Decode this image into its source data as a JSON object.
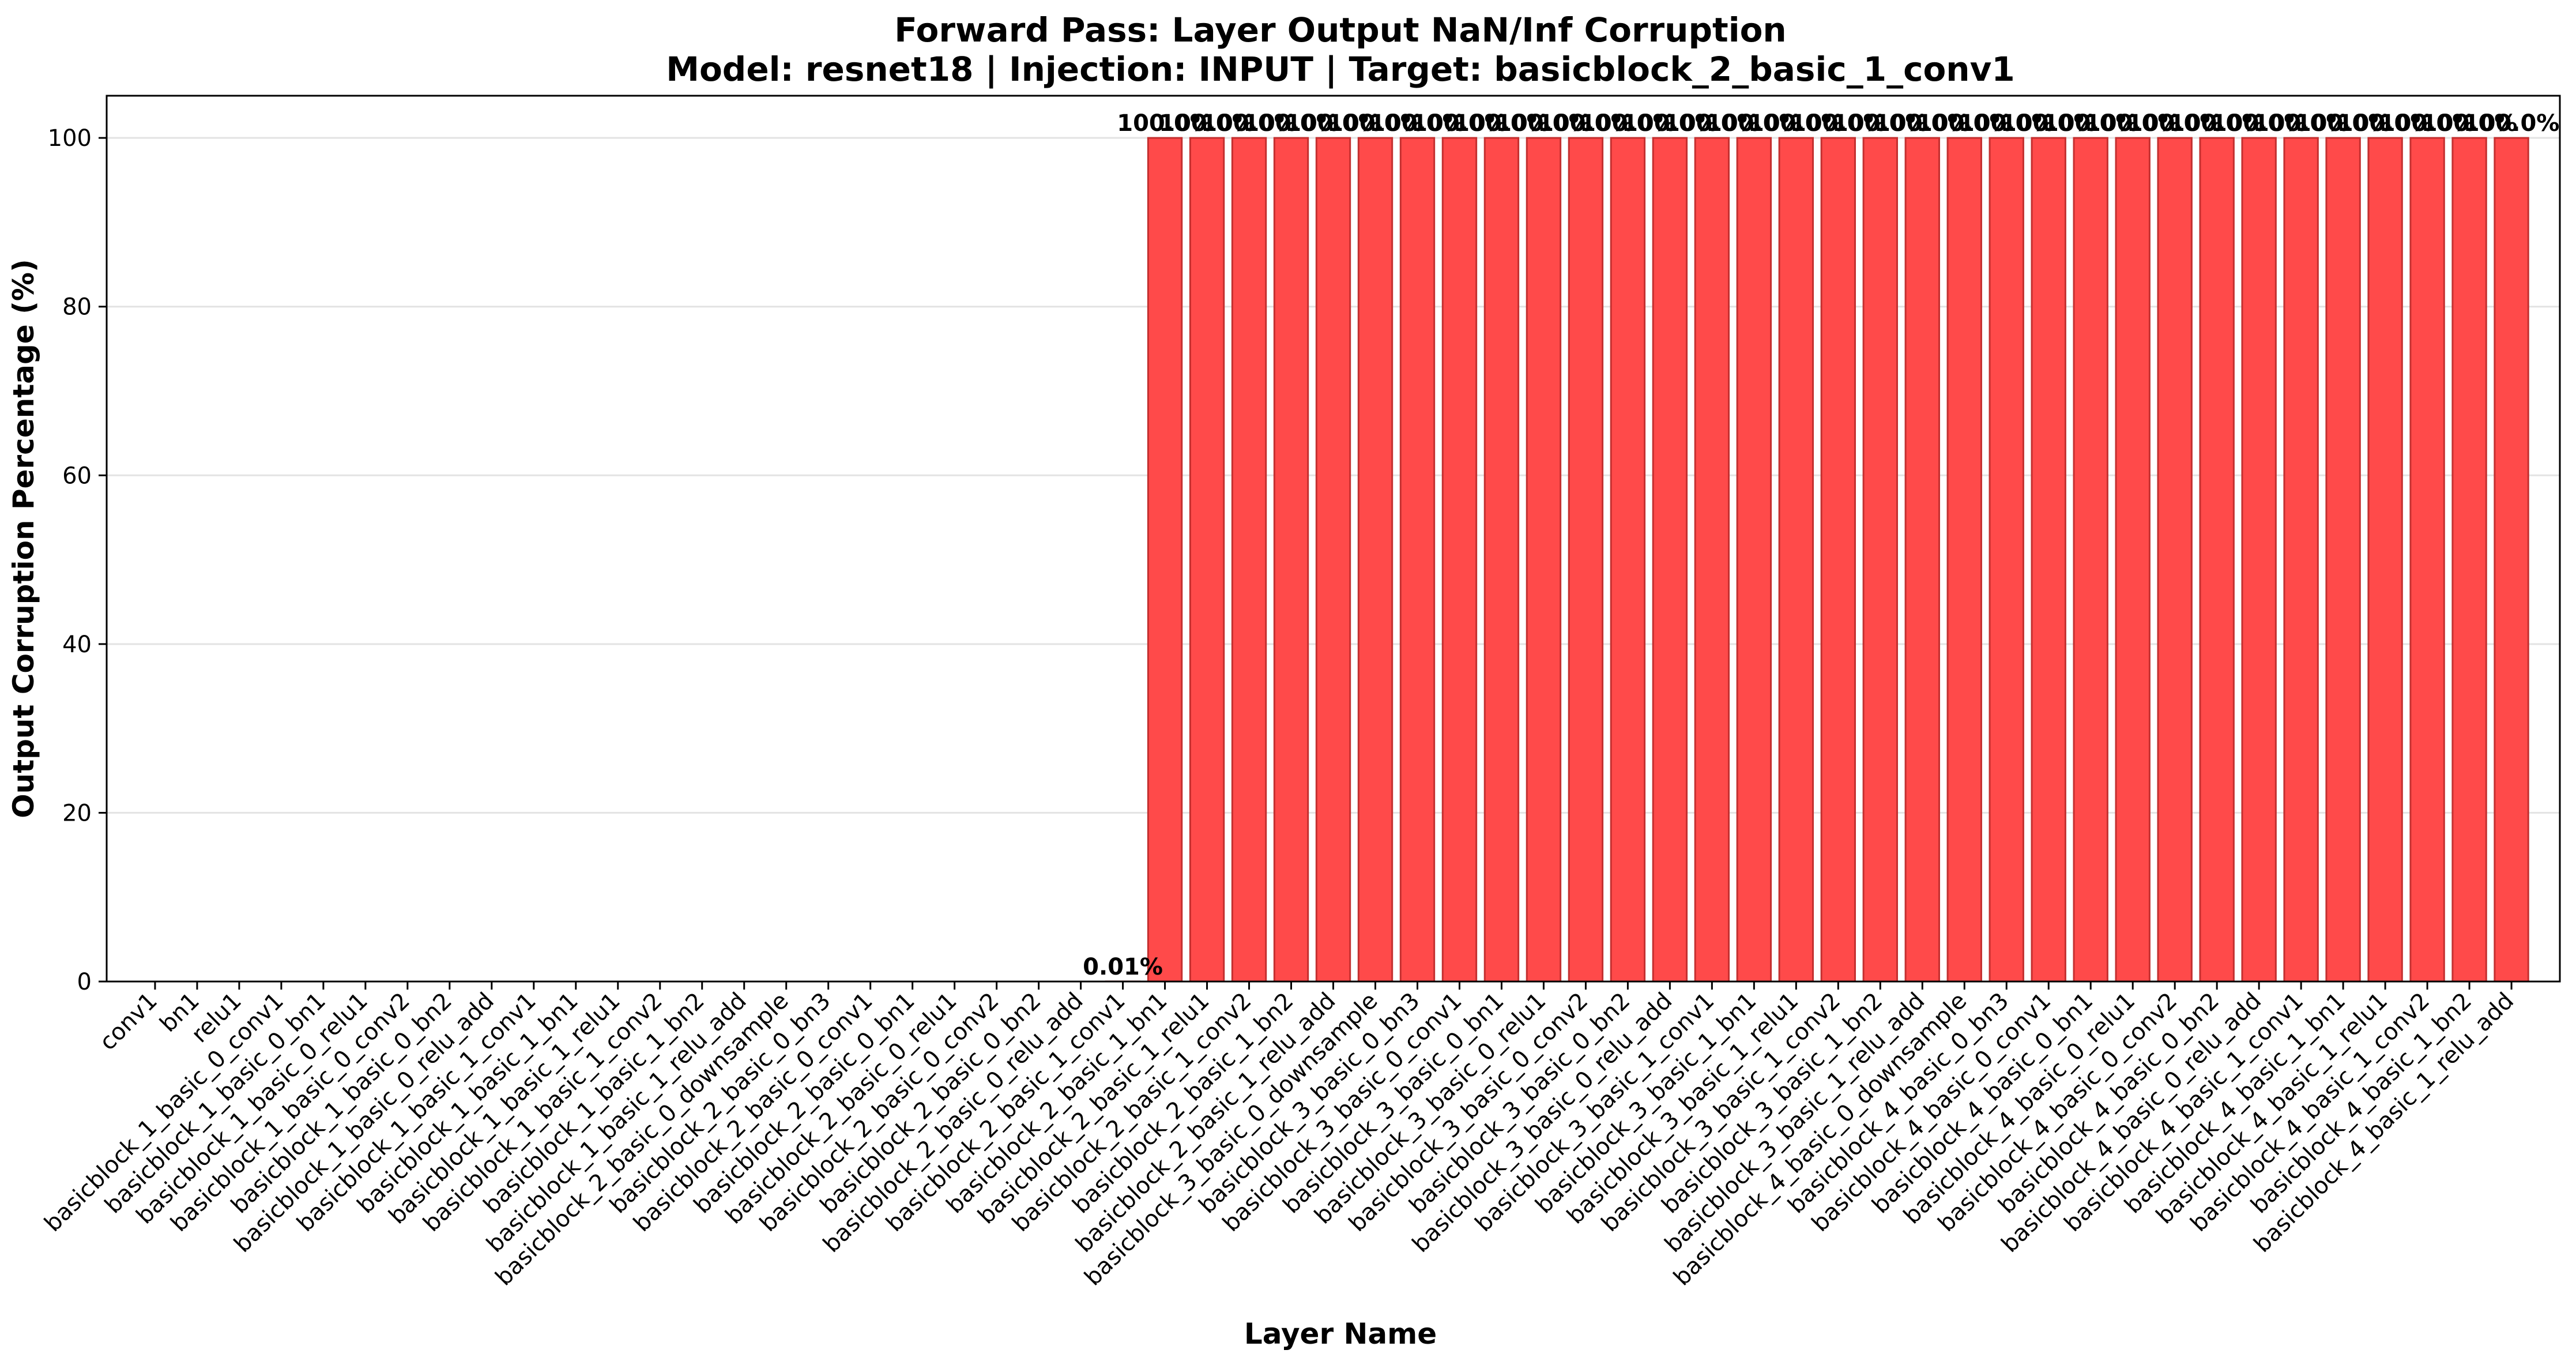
{
  "chart_data": {
    "type": "bar",
    "title": "Forward Pass: Layer Output NaN/Inf Corruption",
    "subtitle": "Model: resnet18 | Injection: INPUT | Target: basicblock_2_basic_1_conv1",
    "xlabel": "Layer Name",
    "ylabel": "Output Corruption Percentage (%)",
    "ylim": [
      0,
      105
    ],
    "yticks": [
      0,
      20,
      40,
      60,
      80,
      100
    ],
    "grid": "y",
    "bar_color": "#ff4a4a",
    "bar_edge_color": "#c43030",
    "categories": [
      "conv1",
      "bn1",
      "relu1",
      "basicblock_1_basic_0_conv1",
      "basicblock_1_basic_0_bn1",
      "basicblock_1_basic_0_relu1",
      "basicblock_1_basic_0_conv2",
      "basicblock_1_basic_0_bn2",
      "basicblock_1_basic_0_relu_add",
      "basicblock_1_basic_1_conv1",
      "basicblock_1_basic_1_bn1",
      "basicblock_1_basic_1_relu1",
      "basicblock_1_basic_1_conv2",
      "basicblock_1_basic_1_bn2",
      "basicblock_1_basic_1_relu_add",
      "basicblock_2_basic_0_downsample",
      "basicblock_2_basic_0_bn3",
      "basicblock_2_basic_0_conv1",
      "basicblock_2_basic_0_bn1",
      "basicblock_2_basic_0_relu1",
      "basicblock_2_basic_0_conv2",
      "basicblock_2_basic_0_bn2",
      "basicblock_2_basic_0_relu_add",
      "basicblock_2_basic_1_conv1",
      "basicblock_2_basic_1_bn1",
      "basicblock_2_basic_1_relu1",
      "basicblock_2_basic_1_conv2",
      "basicblock_2_basic_1_bn2",
      "basicblock_2_basic_1_relu_add",
      "basicblock_3_basic_0_downsample",
      "basicblock_3_basic_0_bn3",
      "basicblock_3_basic_0_conv1",
      "basicblock_3_basic_0_bn1",
      "basicblock_3_basic_0_relu1",
      "basicblock_3_basic_0_conv2",
      "basicblock_3_basic_0_bn2",
      "basicblock_3_basic_0_relu_add",
      "basicblock_3_basic_1_conv1",
      "basicblock_3_basic_1_bn1",
      "basicblock_3_basic_1_relu1",
      "basicblock_3_basic_1_conv2",
      "basicblock_3_basic_1_bn2",
      "basicblock_3_basic_1_relu_add",
      "basicblock_4_basic_0_downsample",
      "basicblock_4_basic_0_bn3",
      "basicblock_4_basic_0_conv1",
      "basicblock_4_basic_0_bn1",
      "basicblock_4_basic_0_relu1",
      "basicblock_4_basic_0_conv2",
      "basicblock_4_basic_0_bn2",
      "basicblock_4_basic_0_relu_add",
      "basicblock_4_basic_1_conv1",
      "basicblock_4_basic_1_bn1",
      "basicblock_4_basic_1_relu1",
      "basicblock_4_basic_1_conv2",
      "basicblock_4_basic_1_bn2",
      "basicblock_4_basic_1_relu_add"
    ],
    "values": [
      0,
      0,
      0,
      0,
      0,
      0,
      0,
      0,
      0,
      0,
      0,
      0,
      0,
      0,
      0,
      0,
      0,
      0,
      0,
      0,
      0,
      0,
      0,
      0.01,
      100,
      100,
      100,
      100,
      100,
      100,
      100,
      100,
      100,
      100,
      100,
      100,
      100,
      100,
      100,
      100,
      100,
      100,
      100,
      100,
      100,
      100,
      100,
      100,
      100,
      100,
      100,
      100,
      100,
      100,
      100,
      100,
      100
    ],
    "data_labels": [
      "",
      "",
      "",
      "",
      "",
      "",
      "",
      "",
      "",
      "",
      "",
      "",
      "",
      "",
      "",
      "",
      "",
      "",
      "",
      "",
      "",
      "",
      "",
      "0.01%",
      "100.0%",
      "100.0%",
      "100.0%",
      "100.0%",
      "100.0%",
      "100.0%",
      "100.0%",
      "100.0%",
      "100.0%",
      "100.0%",
      "100.0%",
      "100.0%",
      "100.0%",
      "100.0%",
      "100.0%",
      "100.0%",
      "100.0%",
      "100.0%",
      "100.0%",
      "100.0%",
      "100.0%",
      "100.0%",
      "100.0%",
      "100.0%",
      "100.0%",
      "100.0%",
      "100.0%",
      "100.0%",
      "100.0%",
      "100.0%",
      "100.0%",
      "100.0%",
      "100.0%"
    ]
  }
}
